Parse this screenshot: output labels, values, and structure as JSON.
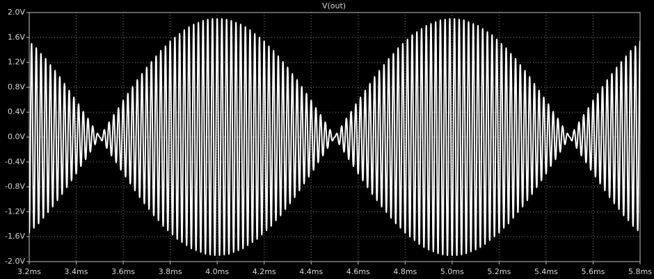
{
  "chart_data": {
    "type": "line",
    "title": "V(out)",
    "color": "#ffffff",
    "grid": true,
    "xlim": [
      3.2,
      5.8
    ],
    "ylim": [
      -2,
      2
    ],
    "xticks": [
      {
        "value": 3.2,
        "label": "3.2ms"
      },
      {
        "value": 3.4,
        "label": "3.4ms"
      },
      {
        "value": 3.6,
        "label": "3.6ms"
      },
      {
        "value": 3.8,
        "label": "3.8ms"
      },
      {
        "value": 4.0,
        "label": "4.0ms"
      },
      {
        "value": 4.2,
        "label": "4.2ms"
      },
      {
        "value": 4.4,
        "label": "4.4ms"
      },
      {
        "value": 4.6,
        "label": "4.6ms"
      },
      {
        "value": 4.8,
        "label": "4.8ms"
      },
      {
        "value": 5.0,
        "label": "5.0ms"
      },
      {
        "value": 5.2,
        "label": "5.2ms"
      },
      {
        "value": 5.4,
        "label": "5.4ms"
      },
      {
        "value": 5.6,
        "label": "5.6ms"
      },
      {
        "value": 5.8,
        "label": "5.8ms"
      }
    ],
    "yticks": [
      {
        "value": 2.0,
        "label": "2.0V"
      },
      {
        "value": 1.6,
        "label": "1.6V"
      },
      {
        "value": 1.2,
        "label": "1.2V"
      },
      {
        "value": 0.8,
        "label": "0.8V"
      },
      {
        "value": 0.4,
        "label": "0.4V"
      },
      {
        "value": 0,
        "label": "0.0V"
      },
      {
        "value": -0.4,
        "label": "-0.4V"
      },
      {
        "value": -0.8,
        "label": "-0.8V"
      },
      {
        "value": -1.2,
        "label": "-1.2V"
      },
      {
        "value": -1.6,
        "label": "-1.6V"
      },
      {
        "value": -2.0,
        "label": "-2.0V"
      }
    ],
    "x": [
      3.2,
      3.21,
      3.22,
      3.23,
      3.24,
      3.25,
      3.26,
      3.27,
      3.28,
      3.29,
      3.3,
      3.31,
      3.32,
      3.33,
      3.34,
      3.35,
      3.36,
      3.37,
      3.38,
      3.39,
      3.4,
      3.41,
      3.42,
      3.43,
      3.44,
      3.45,
      3.46,
      3.47,
      3.48,
      3.49,
      3.5,
      3.51,
      3.52,
      3.53,
      3.54,
      3.55,
      3.56,
      3.57,
      3.58,
      3.59,
      3.6,
      3.61,
      3.62,
      3.63,
      3.64,
      3.65,
      3.66,
      3.67,
      3.68,
      3.69,
      3.7,
      3.71,
      3.72,
      3.73,
      3.74,
      3.75,
      3.76,
      3.77,
      3.78,
      3.79,
      3.8,
      3.81,
      3.82,
      3.83,
      3.84,
      3.85,
      3.86,
      3.87,
      3.88,
      3.89,
      3.9,
      3.91,
      3.92,
      3.93,
      3.94,
      3.95,
      3.96,
      3.97,
      3.98,
      3.99,
      4.0,
      4.01,
      4.02,
      4.03,
      4.04,
      4.05,
      4.06,
      4.07,
      4.08,
      4.09,
      4.1,
      4.11,
      4.12,
      4.13,
      4.14,
      4.15,
      4.16,
      4.17,
      4.18,
      4.19,
      4.2,
      4.21,
      4.22,
      4.23,
      4.24,
      4.25,
      4.26,
      4.27,
      4.28,
      4.29,
      4.3,
      4.31,
      4.32,
      4.33,
      4.34,
      4.35,
      4.36,
      4.37,
      4.38,
      4.39,
      4.4,
      4.41,
      4.42,
      4.43,
      4.44,
      4.45,
      4.46,
      4.47,
      4.48,
      4.49,
      4.5,
      4.51,
      4.52,
      4.53,
      4.54,
      4.55,
      4.56,
      4.57,
      4.58,
      4.59,
      4.6,
      4.61,
      4.62,
      4.63,
      4.64,
      4.65,
      4.66,
      4.67,
      4.68,
      4.69,
      4.7,
      4.71,
      4.72,
      4.73,
      4.74,
      4.75,
      4.76,
      4.77,
      4.78,
      4.79,
      4.8,
      4.81,
      4.82,
      4.83,
      4.84,
      4.85,
      4.86,
      4.87,
      4.88,
      4.89,
      4.9,
      4.91,
      4.92,
      4.93,
      4.94,
      4.95,
      4.96,
      4.97,
      4.98,
      4.99,
      5.0,
      5.01,
      5.02,
      5.03,
      5.04,
      5.05,
      5.06,
      5.07,
      5.08,
      5.09,
      5.1,
      5.11,
      5.12,
      5.13,
      5.14,
      5.15,
      5.16,
      5.17,
      5.18,
      5.19,
      5.2,
      5.21,
      5.22,
      5.23,
      5.24,
      5.25,
      5.26,
      5.27,
      5.28,
      5.29,
      5.3,
      5.31,
      5.32,
      5.33,
      5.34,
      5.35,
      5.36,
      5.37,
      5.38,
      5.39,
      5.4,
      5.41,
      5.42,
      5.43,
      5.44,
      5.45,
      5.46,
      5.47,
      5.48,
      5.49,
      5.5,
      5.51,
      5.52,
      5.53,
      5.54,
      5.55,
      5.56,
      5.57,
      5.58,
      5.59,
      5.6,
      5.61,
      5.62,
      5.63,
      5.64,
      5.65,
      5.66,
      5.67,
      5.68,
      5.69,
      5.7,
      5.71,
      5.72,
      5.73,
      5.74,
      5.75,
      5.76,
      5.77,
      5.78,
      5.79,
      5.8
    ],
    "values": [
      -1.54,
      1.5,
      -1.46,
      1.43,
      -1.39,
      1.34,
      -1.3,
      1.26,
      -1.21,
      1.16,
      -1.12,
      1.07,
      -1.02,
      0.97,
      -0.92,
      0.86,
      -0.81,
      0.75,
      -0.7,
      0.64,
      -0.59,
      0.53,
      -0.47,
      0.41,
      -0.36,
      0.3,
      -0.24,
      0.18,
      -0.12,
      0.06,
      0,
      -0.06,
      0.12,
      -0.18,
      0.24,
      -0.3,
      0.36,
      -0.41,
      0.47,
      -0.53,
      0.59,
      -0.64,
      0.7,
      -0.75,
      0.81,
      -0.86,
      0.92,
      -0.97,
      1.02,
      -1.07,
      1.12,
      -1.16,
      1.21,
      -1.26,
      1.3,
      -1.34,
      1.39,
      -1.43,
      1.46,
      -1.5,
      1.54,
      -1.57,
      1.6,
      -1.64,
      1.66,
      -1.69,
      1.72,
      -1.74,
      1.77,
      -1.79,
      1.81,
      -1.82,
      1.84,
      -1.85,
      1.87,
      -1.88,
      1.89,
      -1.89,
      1.9,
      -1.9,
      1.9,
      -1.9,
      1.9,
      -1.89,
      1.89,
      -1.88,
      1.87,
      -1.85,
      1.84,
      -1.82,
      1.81,
      -1.79,
      1.77,
      -1.74,
      1.72,
      -1.69,
      1.66,
      -1.64,
      1.6,
      -1.57,
      1.54,
      -1.5,
      1.46,
      -1.43,
      1.39,
      -1.34,
      1.3,
      -1.26,
      1.21,
      -1.16,
      1.12,
      -1.07,
      1.02,
      -0.97,
      0.92,
      -0.86,
      0.81,
      -0.75,
      0.7,
      -0.64,
      0.59,
      -0.53,
      0.47,
      -0.41,
      0.36,
      -0.3,
      0.24,
      -0.18,
      0.12,
      -0.06,
      0,
      0.06,
      -0.12,
      0.18,
      -0.24,
      0.3,
      -0.36,
      0.41,
      -0.47,
      0.53,
      -0.59,
      0.64,
      -0.7,
      0.75,
      -0.81,
      0.86,
      -0.92,
      0.97,
      -1.02,
      1.07,
      -1.12,
      1.16,
      -1.21,
      1.26,
      -1.3,
      1.34,
      -1.39,
      1.43,
      -1.46,
      1.5,
      -1.54,
      1.57,
      -1.6,
      1.64,
      -1.66,
      1.69,
      -1.72,
      1.74,
      -1.77,
      1.79,
      -1.81,
      1.82,
      -1.84,
      1.85,
      -1.87,
      1.88,
      -1.89,
      1.89,
      -1.9,
      1.9,
      -1.9,
      1.9,
      -1.9,
      1.89,
      -1.89,
      1.88,
      -1.87,
      1.85,
      -1.84,
      1.82,
      -1.81,
      1.79,
      -1.77,
      1.74,
      -1.72,
      1.69,
      -1.66,
      1.64,
      -1.6,
      1.57,
      -1.54,
      1.5,
      -1.46,
      1.43,
      -1.39,
      1.34,
      -1.3,
      1.26,
      -1.21,
      1.16,
      -1.12,
      1.07,
      -1.02,
      0.97,
      -0.92,
      0.86,
      -0.81,
      0.75,
      -0.7,
      0.64,
      -0.59,
      0.53,
      -0.47,
      0.41,
      -0.36,
      0.3,
      -0.24,
      0.18,
      -0.12,
      0.06,
      0,
      -0.06,
      0.12,
      -0.18,
      0.24,
      -0.3,
      0.36,
      -0.41,
      0.47,
      -0.53,
      0.59,
      -0.64,
      0.7,
      -0.75,
      0.81,
      -0.86,
      0.92,
      -0.97,
      1.02,
      -1.07,
      1.12,
      -1.16,
      1.21,
      -1.26,
      1.3,
      -1.34,
      1.39,
      -1.43,
      1.46,
      -1.5,
      1.54
    ]
  }
}
